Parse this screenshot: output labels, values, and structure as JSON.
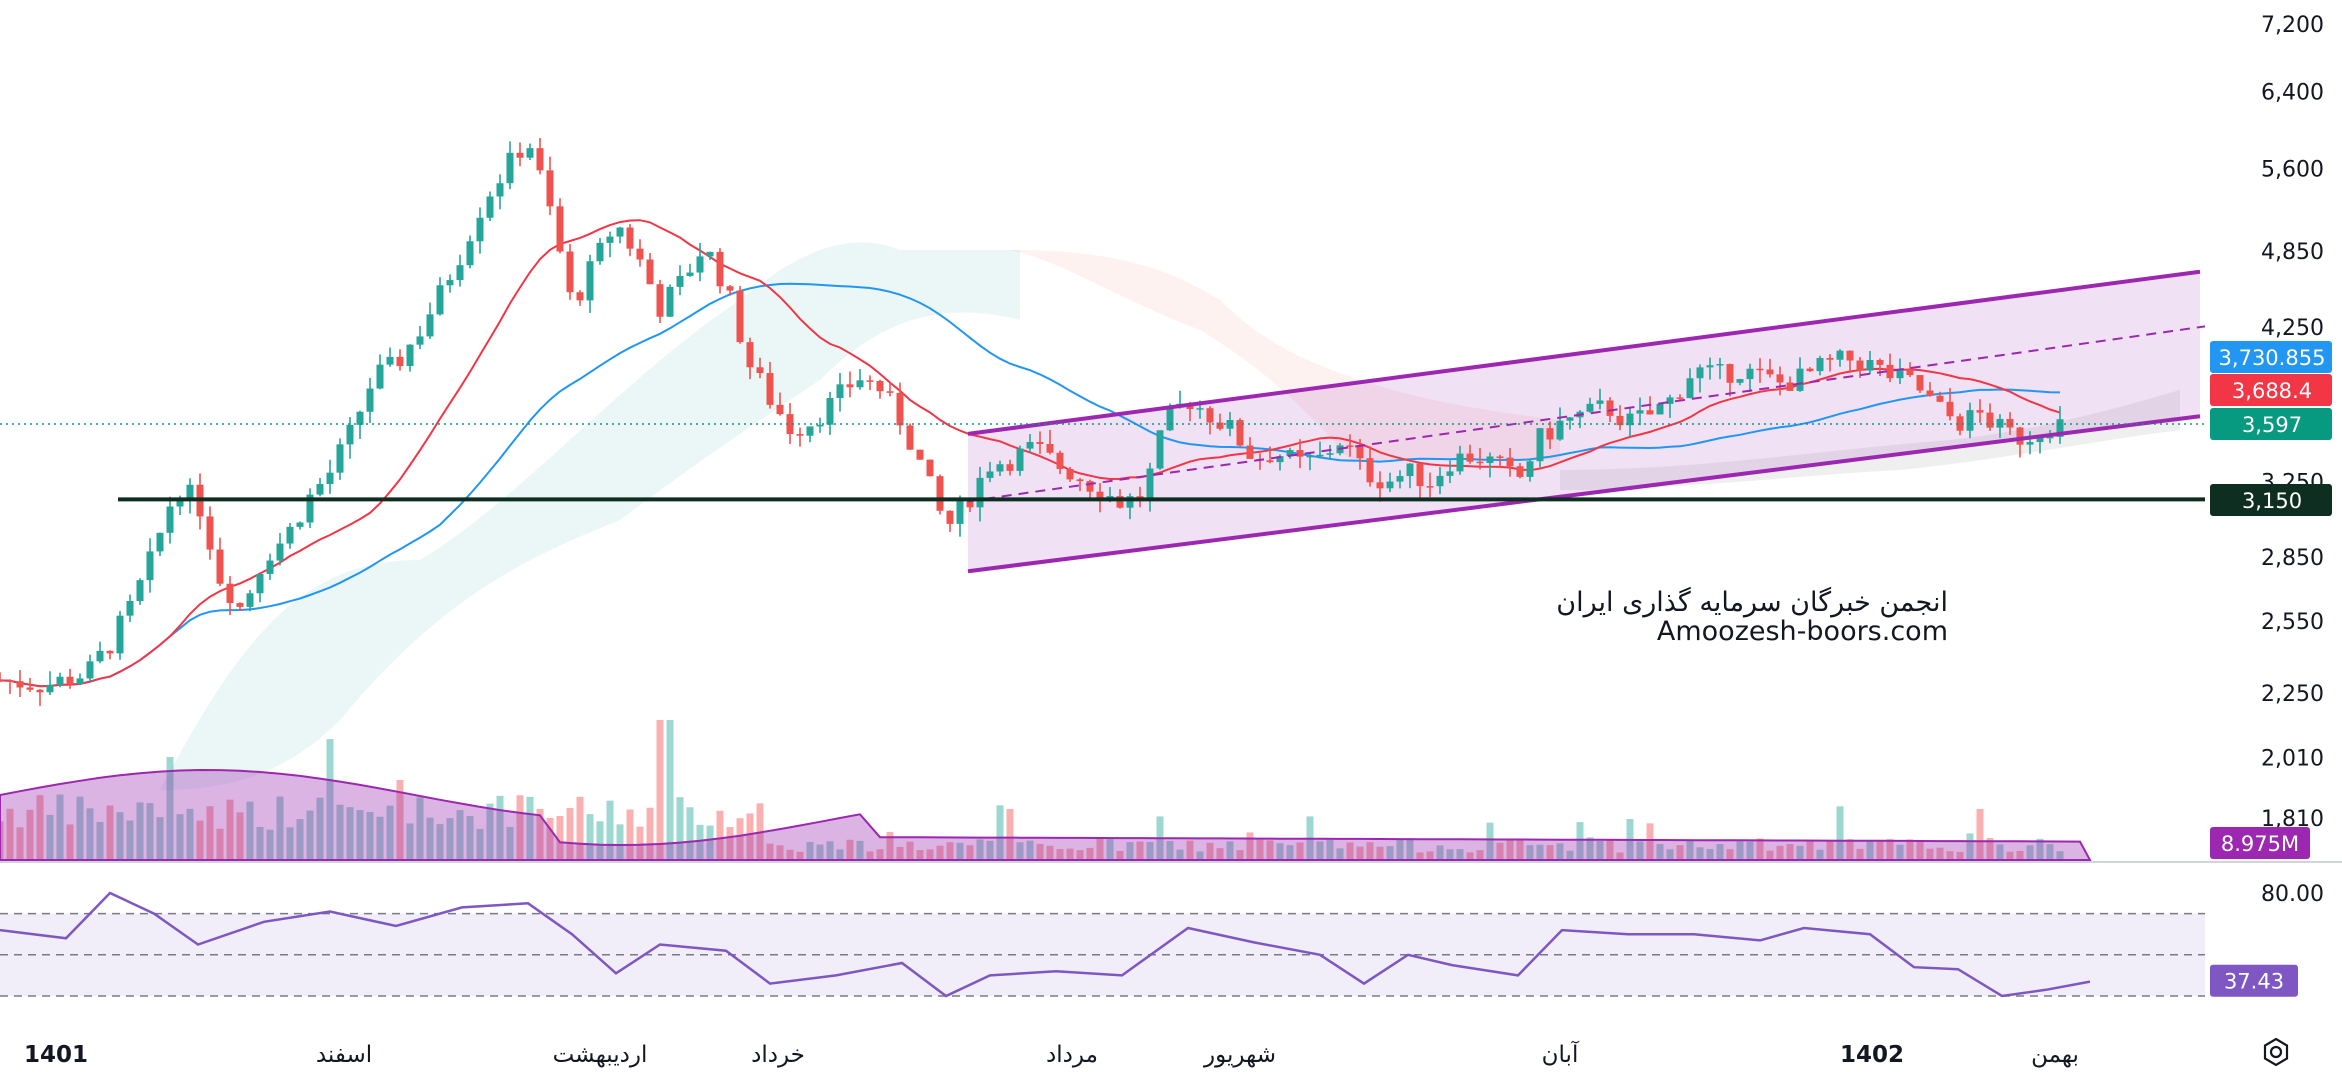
{
  "watermark": {
    "line1": "انجمن خبرگان سرمایه گذاری ایران",
    "line2": "Amoozesh-boors.com"
  },
  "colors": {
    "up": "#26a69a",
    "down": "#ef5350",
    "ma_fast": "#f23645",
    "ma_slow": "#2196f3",
    "channel": "#9c27b0",
    "support": "#0f2e22",
    "rsi": "#7e57c2",
    "volume_ma": "#9c27b0"
  },
  "chart_data": {
    "type": "candlestick",
    "price_axis": {
      "ticks": [
        "7,200",
        "6,400",
        "5,600",
        "4,850",
        "4,250",
        "3,250",
        "2,850",
        "2,550",
        "2,250",
        "2,010",
        "1,810"
      ],
      "scale": "log"
    },
    "time_axis": [
      "1401",
      "اسفند",
      "اردیبهشت",
      "خرداد",
      "مرداد",
      "شهریور",
      "آبان",
      "1402",
      "بهمن"
    ],
    "price_tags": [
      {
        "label": "3,730.855",
        "value": 3730.855,
        "color": "#2196f3"
      },
      {
        "label": "3,688.4",
        "value": 3688.4,
        "color": "#f23645"
      },
      {
        "label": "3,597",
        "value": 3597,
        "color": "#089981"
      },
      {
        "label": "3,150",
        "value": 3150,
        "color": "#0f2e22"
      }
    ],
    "volume_tag": "8.975M",
    "rsi": {
      "tick": "80.00",
      "current_label": "37.43",
      "current": 37.43,
      "upper": 70,
      "middle": 50,
      "lower": 30
    },
    "support_level": 3150,
    "channel": {
      "upper": [
        [
          0,
          3530
        ],
        [
          100,
          4680
        ]
      ],
      "lower": [
        [
          0,
          2780
        ],
        [
          100,
          3640
        ]
      ],
      "mid": [
        [
          0,
          3140
        ],
        [
          100,
          4110
        ]
      ]
    },
    "series_price": [
      {
        "t": 0,
        "p": 2300
      },
      {
        "t": 2,
        "p": 2280
      },
      {
        "t": 4,
        "p": 2330
      },
      {
        "t": 5,
        "p": 2450
      },
      {
        "t": 6,
        "p": 2620
      },
      {
        "t": 7,
        "p": 2870
      },
      {
        "t": 8,
        "p": 3220
      },
      {
        "t": 9,
        "p": 3140
      },
      {
        "t": 10,
        "p": 2750
      },
      {
        "t": 11,
        "p": 2600
      },
      {
        "t": 12,
        "p": 2850
      },
      {
        "t": 13,
        "p": 2950
      },
      {
        "t": 14,
        "p": 3150
      },
      {
        "t": 15,
        "p": 3300
      },
      {
        "t": 16,
        "p": 3550
      },
      {
        "t": 17,
        "p": 3900
      },
      {
        "t": 18,
        "p": 3980
      },
      {
        "t": 19,
        "p": 4200
      },
      {
        "t": 20,
        "p": 4500
      },
      {
        "t": 21,
        "p": 4850
      },
      {
        "t": 22,
        "p": 5300
      },
      {
        "t": 23,
        "p": 5600
      },
      {
        "t": 24,
        "p": 5900
      },
      {
        "t": 25,
        "p": 5200
      },
      {
        "t": 26,
        "p": 4400
      },
      {
        "t": 27,
        "p": 4750
      },
      {
        "t": 28,
        "p": 5100
      },
      {
        "t": 29,
        "p": 4800
      },
      {
        "t": 30,
        "p": 4400
      },
      {
        "t": 31,
        "p": 4600
      },
      {
        "t": 32,
        "p": 4900
      },
      {
        "t": 33,
        "p": 4550
      },
      {
        "t": 34,
        "p": 4000
      },
      {
        "t": 35,
        "p": 3750
      },
      {
        "t": 36,
        "p": 3550
      },
      {
        "t": 37,
        "p": 3620
      },
      {
        "t": 38,
        "p": 3750
      },
      {
        "t": 39,
        "p": 3900
      },
      {
        "t": 40,
        "p": 3820
      },
      {
        "t": 41,
        "p": 3600
      },
      {
        "t": 42,
        "p": 3300
      },
      {
        "t": 43,
        "p": 2990
      },
      {
        "t": 44,
        "p": 3150
      },
      {
        "t": 45,
        "p": 3350
      },
      {
        "t": 46,
        "p": 3380
      },
      {
        "t": 47,
        "p": 3450
      },
      {
        "t": 48,
        "p": 3350
      },
      {
        "t": 49,
        "p": 3280
      },
      {
        "t": 50,
        "p": 3200
      },
      {
        "t": 51,
        "p": 3130
      },
      {
        "t": 52,
        "p": 3180
      },
      {
        "t": 53,
        "p": 3600
      },
      {
        "t": 54,
        "p": 3750
      },
      {
        "t": 55,
        "p": 3650
      },
      {
        "t": 56,
        "p": 3550
      },
      {
        "t": 57,
        "p": 3380
      },
      {
        "t": 58,
        "p": 3420
      },
      {
        "t": 59,
        "p": 3350
      },
      {
        "t": 60,
        "p": 3380
      },
      {
        "t": 61,
        "p": 3500
      },
      {
        "t": 62,
        "p": 3300
      },
      {
        "t": 63,
        "p": 3250
      },
      {
        "t": 64,
        "p": 3300
      },
      {
        "t": 65,
        "p": 3250
      },
      {
        "t": 66,
        "p": 3380
      },
      {
        "t": 67,
        "p": 3400
      },
      {
        "t": 68,
        "p": 3350
      },
      {
        "t": 69,
        "p": 3250
      },
      {
        "t": 70,
        "p": 3500
      },
      {
        "t": 71,
        "p": 3600
      },
      {
        "t": 72,
        "p": 3650
      },
      {
        "t": 73,
        "p": 3700
      },
      {
        "t": 74,
        "p": 3600
      },
      {
        "t": 75,
        "p": 3650
      },
      {
        "t": 76,
        "p": 3750
      },
      {
        "t": 77,
        "p": 3950
      },
      {
        "t": 78,
        "p": 3900
      },
      {
        "t": 79,
        "p": 3950
      },
      {
        "t": 80,
        "p": 3900
      },
      {
        "t": 81,
        "p": 3850
      },
      {
        "t": 82,
        "p": 3900
      },
      {
        "t": 83,
        "p": 3980
      },
      {
        "t": 84,
        "p": 4020
      },
      {
        "t": 85,
        "p": 3980
      },
      {
        "t": 86,
        "p": 3900
      },
      {
        "t": 87,
        "p": 3850
      },
      {
        "t": 88,
        "p": 3700
      },
      {
        "t": 89,
        "p": 3600
      },
      {
        "t": 90,
        "p": 3650
      },
      {
        "t": 91,
        "p": 3550
      },
      {
        "t": 92,
        "p": 3500
      },
      {
        "t": 93,
        "p": 3580
      },
      {
        "t": 94,
        "p": 3597
      }
    ],
    "series_rsi": [
      {
        "t": 0,
        "v": 62
      },
      {
        "t": 3,
        "v": 58
      },
      {
        "t": 5,
        "v": 80
      },
      {
        "t": 7,
        "v": 70
      },
      {
        "t": 9,
        "v": 55
      },
      {
        "t": 12,
        "v": 66
      },
      {
        "t": 15,
        "v": 71
      },
      {
        "t": 18,
        "v": 64
      },
      {
        "t": 21,
        "v": 73
      },
      {
        "t": 24,
        "v": 75
      },
      {
        "t": 26,
        "v": 60
      },
      {
        "t": 28,
        "v": 41
      },
      {
        "t": 30,
        "v": 55
      },
      {
        "t": 33,
        "v": 52
      },
      {
        "t": 35,
        "v": 36
      },
      {
        "t": 38,
        "v": 40
      },
      {
        "t": 41,
        "v": 46
      },
      {
        "t": 43,
        "v": 30
      },
      {
        "t": 45,
        "v": 40
      },
      {
        "t": 48,
        "v": 42
      },
      {
        "t": 51,
        "v": 40
      },
      {
        "t": 54,
        "v": 63
      },
      {
        "t": 57,
        "v": 56
      },
      {
        "t": 60,
        "v": 50
      },
      {
        "t": 62,
        "v": 36
      },
      {
        "t": 64,
        "v": 50
      },
      {
        "t": 66,
        "v": 45
      },
      {
        "t": 69,
        "v": 40
      },
      {
        "t": 71,
        "v": 62
      },
      {
        "t": 74,
        "v": 60
      },
      {
        "t": 77,
        "v": 60
      },
      {
        "t": 80,
        "v": 57
      },
      {
        "t": 82,
        "v": 63
      },
      {
        "t": 85,
        "v": 60
      },
      {
        "t": 87,
        "v": 44
      },
      {
        "t": 89,
        "v": 43
      },
      {
        "t": 91,
        "v": 30
      },
      {
        "t": 93,
        "v": 33
      },
      {
        "t": 95,
        "v": 37
      }
    ]
  }
}
